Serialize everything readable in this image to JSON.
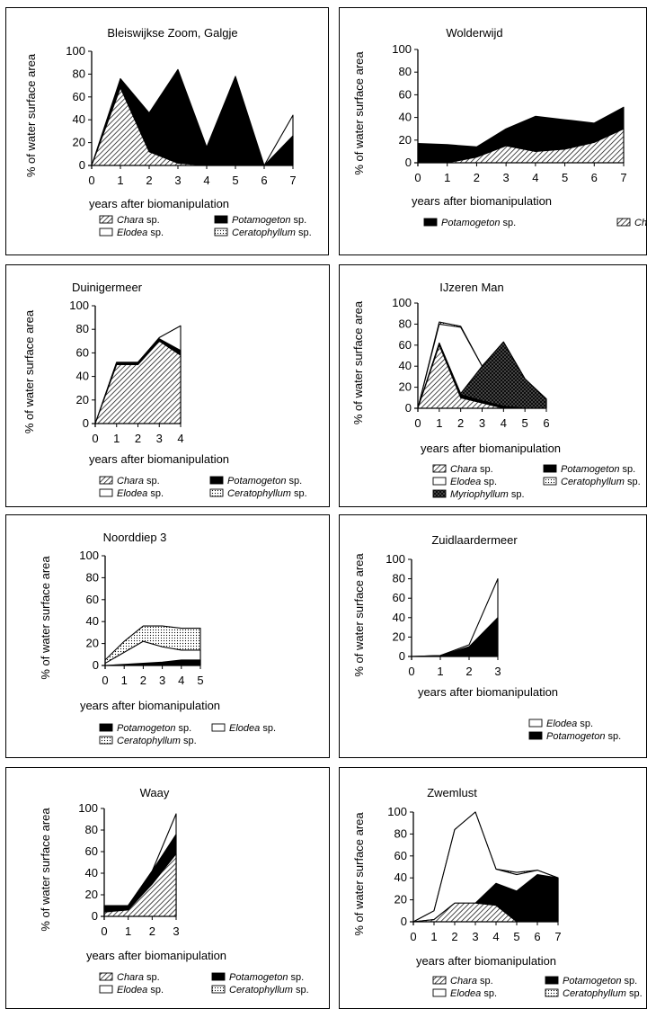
{
  "y_axis_label": "% of water surface area",
  "x_axis_label": "years after biomanipulation",
  "chart_data": [
    {
      "type": "area",
      "title": "Bleiswijkse Zoom, Galgje",
      "x": [
        0,
        1,
        2,
        3,
        4,
        5,
        6,
        7
      ],
      "xlim": [
        0,
        7
      ],
      "ylim": [
        0,
        100
      ],
      "yticks": [
        0,
        20,
        40,
        60,
        80,
        100
      ],
      "xticks": [
        0,
        1,
        2,
        3,
        4,
        5,
        6,
        7
      ],
      "xlabel": "years after biomanipulation",
      "ylabel": "% of water surface area",
      "series": [
        {
          "name": "Chara sp.",
          "pattern": "hatch",
          "values": [
            0,
            68,
            12,
            2,
            0,
            0,
            0,
            0
          ]
        },
        {
          "name": "Potamogeton sp.",
          "pattern": "black",
          "values": [
            0,
            76,
            46,
            84,
            16,
            78,
            0,
            26
          ]
        },
        {
          "name": "Elodea sp.",
          "pattern": "white",
          "values": [
            0,
            0,
            0,
            0,
            0,
            0,
            0,
            44
          ]
        }
      ],
      "legend": [
        {
          "genus": "Chara",
          "suffix": " sp.",
          "pattern": "hatch"
        },
        {
          "genus": "Potamogeton",
          "suffix": " sp.",
          "pattern": "black"
        },
        {
          "genus": "Elodea",
          "suffix": " sp.",
          "pattern": "white"
        },
        {
          "genus": "Ceratophyllum",
          "suffix": " sp.",
          "pattern": "dots"
        }
      ]
    },
    {
      "type": "area",
      "title": "Wolderwijd",
      "x": [
        0,
        1,
        2,
        3,
        4,
        5,
        6,
        7
      ],
      "xlim": [
        0,
        7
      ],
      "ylim": [
        0,
        100
      ],
      "yticks": [
        0,
        20,
        40,
        60,
        80,
        100
      ],
      "xticks": [
        0,
        1,
        2,
        3,
        4,
        5,
        6,
        7
      ],
      "xlabel": "years after biomanipulation",
      "ylabel": "% of water surface area",
      "series": [
        {
          "name": "Chara sp.",
          "pattern": "hatch",
          "values": [
            0,
            0,
            5,
            15,
            10,
            12,
            18,
            30
          ]
        },
        {
          "name": "Potamogeton sp.",
          "pattern": "black",
          "values": [
            17,
            16,
            14,
            30,
            41,
            38,
            35,
            49
          ]
        }
      ],
      "legend": [
        {
          "genus": "Potamogeton",
          "suffix": " sp.",
          "pattern": "black"
        },
        {
          "genus": "Chara",
          "suffix": " sp.",
          "pattern": "hatch"
        }
      ]
    },
    {
      "type": "area",
      "title": "Duinigermeer",
      "x": [
        0,
        1,
        2,
        3,
        4
      ],
      "xlim": [
        0,
        4
      ],
      "ylim": [
        0,
        100
      ],
      "yticks": [
        0,
        20,
        40,
        60,
        80,
        100
      ],
      "xticks": [
        0,
        1,
        2,
        3,
        4
      ],
      "xlabel": "years after biomanipulation",
      "ylabel": "% of water surface area",
      "series": [
        {
          "name": "Chara sp.",
          "pattern": "hatch",
          "values": [
            0,
            50,
            50,
            70,
            58
          ]
        },
        {
          "name": "Potamogeton sp.",
          "pattern": "black",
          "values": [
            0,
            52,
            52,
            72,
            62
          ]
        },
        {
          "name": "Elodea sp.",
          "pattern": "white",
          "values": [
            0,
            52,
            52,
            73,
            83
          ]
        }
      ],
      "legend": [
        {
          "genus": "Chara",
          "suffix": " sp.",
          "pattern": "hatch"
        },
        {
          "genus": "Potamogeton",
          "suffix": " sp.",
          "pattern": "black"
        },
        {
          "genus": "Elodea",
          "suffix": " sp.",
          "pattern": "white"
        },
        {
          "genus": "Ceratophyllum",
          "suffix": " sp.",
          "pattern": "dots"
        }
      ]
    },
    {
      "type": "area",
      "title": "IJzeren Man",
      "x": [
        0,
        1,
        2,
        3,
        4,
        5,
        6
      ],
      "xlim": [
        0,
        6
      ],
      "ylim": [
        0,
        100
      ],
      "yticks": [
        0,
        20,
        40,
        60,
        80,
        100
      ],
      "xticks": [
        0,
        1,
        2,
        3,
        4,
        5,
        6
      ],
      "xlabel": "years after biomanipulation",
      "ylabel": "% of water surface area",
      "series": [
        {
          "name": "Chara sp.",
          "pattern": "hatch",
          "values": [
            0,
            60,
            10,
            5,
            0,
            0,
            0
          ]
        },
        {
          "name": "Potamogeton sp.",
          "pattern": "black",
          "values": [
            0,
            62,
            13,
            7,
            2,
            0,
            0
          ]
        },
        {
          "name": "Myriophyllum sp.",
          "pattern": "crosshatch",
          "values": [
            0,
            62,
            14,
            40,
            63,
            28,
            8
          ]
        },
        {
          "name": "Elodea sp.",
          "pattern": "white",
          "values": [
            0,
            80,
            77,
            40,
            63,
            28,
            8
          ]
        },
        {
          "name": "Ceratophyllum sp.",
          "pattern": "dots",
          "values": [
            0,
            82,
            78,
            40,
            63,
            28,
            9
          ]
        }
      ],
      "legend": [
        {
          "genus": "Chara",
          "suffix": " sp.",
          "pattern": "hatch"
        },
        {
          "genus": "Potamogeton",
          "suffix": " sp.",
          "pattern": "black"
        },
        {
          "genus": "Elodea",
          "suffix": " sp.",
          "pattern": "white"
        },
        {
          "genus": "Ceratophyllum",
          "suffix": " sp.",
          "pattern": "dots"
        },
        {
          "genus": "Myriophyllum",
          "suffix": " sp.",
          "pattern": "crosshatch"
        }
      ]
    },
    {
      "type": "area",
      "title": "Noorddiep 3",
      "x": [
        0,
        1,
        2,
        3,
        4,
        5
      ],
      "xlim": [
        0,
        5
      ],
      "ylim": [
        0,
        100
      ],
      "yticks": [
        0,
        20,
        40,
        60,
        80,
        100
      ],
      "xticks": [
        0,
        1,
        2,
        3,
        4,
        5
      ],
      "xlabel": "years after biomanipulation",
      "ylabel": "% of water surface area",
      "series": [
        {
          "name": "Potamogeton sp.",
          "pattern": "black",
          "values": [
            0,
            1,
            2,
            3,
            5,
            5
          ]
        },
        {
          "name": "Elodea sp.",
          "pattern": "white",
          "values": [
            2,
            12,
            22,
            17,
            14,
            14
          ]
        },
        {
          "name": "Ceratophyllum sp.",
          "pattern": "dots",
          "values": [
            5,
            22,
            36,
            36,
            34,
            34
          ]
        }
      ],
      "legend": [
        {
          "genus": "Potamogeton",
          "suffix": " sp.",
          "pattern": "black"
        },
        {
          "genus": "Elodea",
          "suffix": " sp.",
          "pattern": "white"
        },
        {
          "genus": "Ceratophyllum",
          "suffix": " sp.",
          "pattern": "dots"
        }
      ]
    },
    {
      "type": "area",
      "title": "Zuidlaardermeer",
      "x": [
        0,
        1,
        2,
        3
      ],
      "xlim": [
        0,
        3
      ],
      "ylim": [
        0,
        100
      ],
      "yticks": [
        0,
        20,
        40,
        60,
        80,
        100
      ],
      "xticks": [
        0,
        1,
        2,
        3
      ],
      "xlabel": "years after biomanipulation",
      "ylabel": "% of water surface area",
      "series": [
        {
          "name": "Potamogeton sp.",
          "pattern": "black",
          "values": [
            0,
            1,
            10,
            40
          ]
        },
        {
          "name": "Elodea sp.",
          "pattern": "white",
          "values": [
            0,
            1,
            12,
            80
          ]
        }
      ],
      "legend": [
        {
          "genus": "Elodea",
          "suffix": " sp.",
          "pattern": "white"
        },
        {
          "genus": "Potamogeton",
          "suffix": " sp.",
          "pattern": "black"
        }
      ]
    },
    {
      "type": "area",
      "title": "Waay",
      "x": [
        0,
        1,
        2,
        3
      ],
      "xlim": [
        0,
        3
      ],
      "ylim": [
        0,
        100
      ],
      "yticks": [
        0,
        20,
        40,
        60,
        80,
        100
      ],
      "xticks": [
        0,
        1,
        2,
        3
      ],
      "xlabel": "years after biomanipulation",
      "ylabel": "% of water surface area",
      "series": [
        {
          "name": "Chara sp.",
          "pattern": "hatch",
          "values": [
            4,
            6,
            30,
            58
          ]
        },
        {
          "name": "Potamogeton sp.",
          "pattern": "black",
          "values": [
            10,
            10,
            42,
            76
          ]
        },
        {
          "name": "Elodea sp.",
          "pattern": "white",
          "values": [
            10,
            10,
            42,
            95
          ]
        }
      ],
      "legend": [
        {
          "genus": "Chara",
          "suffix": " sp.",
          "pattern": "hatch"
        },
        {
          "genus": "Potamogeton",
          "suffix": " sp.",
          "pattern": "black"
        },
        {
          "genus": "Elodea",
          "suffix": " sp.",
          "pattern": "white"
        },
        {
          "genus": "Ceratophyllum",
          "suffix": " sp.",
          "pattern": "dots"
        }
      ]
    },
    {
      "type": "area",
      "title": "Zwemlust",
      "x": [
        0,
        1,
        2,
        3,
        4,
        5,
        6,
        7
      ],
      "xlim": [
        0,
        7
      ],
      "ylim": [
        0,
        100
      ],
      "yticks": [
        0,
        20,
        40,
        60,
        80,
        100
      ],
      "xticks": [
        0,
        1,
        2,
        3,
        4,
        5,
        6,
        7
      ],
      "xlabel": "years after biomanipulation",
      "ylabel": "% of water surface area",
      "series": [
        {
          "name": "Chara sp.",
          "pattern": "hatch",
          "values": [
            0,
            2,
            17,
            17,
            15,
            0,
            0,
            0
          ]
        },
        {
          "name": "Potamogeton sp.",
          "pattern": "black",
          "values": [
            0,
            2,
            17,
            17,
            35,
            28,
            43,
            40
          ]
        },
        {
          "name": "Elodea sp.",
          "pattern": "white",
          "values": [
            0,
            10,
            84,
            101,
            48,
            43,
            47,
            40
          ]
        },
        {
          "name": "Ceratophyllum sp.",
          "pattern": "dots",
          "values": [
            0,
            10,
            84,
            101,
            48,
            45,
            47,
            40
          ]
        }
      ],
      "legend": [
        {
          "genus": "Chara",
          "suffix": " sp.",
          "pattern": "hatch"
        },
        {
          "genus": "Potamogeton",
          "suffix": " sp.",
          "pattern": "black"
        },
        {
          "genus": "Elodea",
          "suffix": " sp.",
          "pattern": "white"
        },
        {
          "genus": "Ceratophyllum",
          "suffix": " sp.",
          "pattern": "dots"
        }
      ]
    }
  ]
}
